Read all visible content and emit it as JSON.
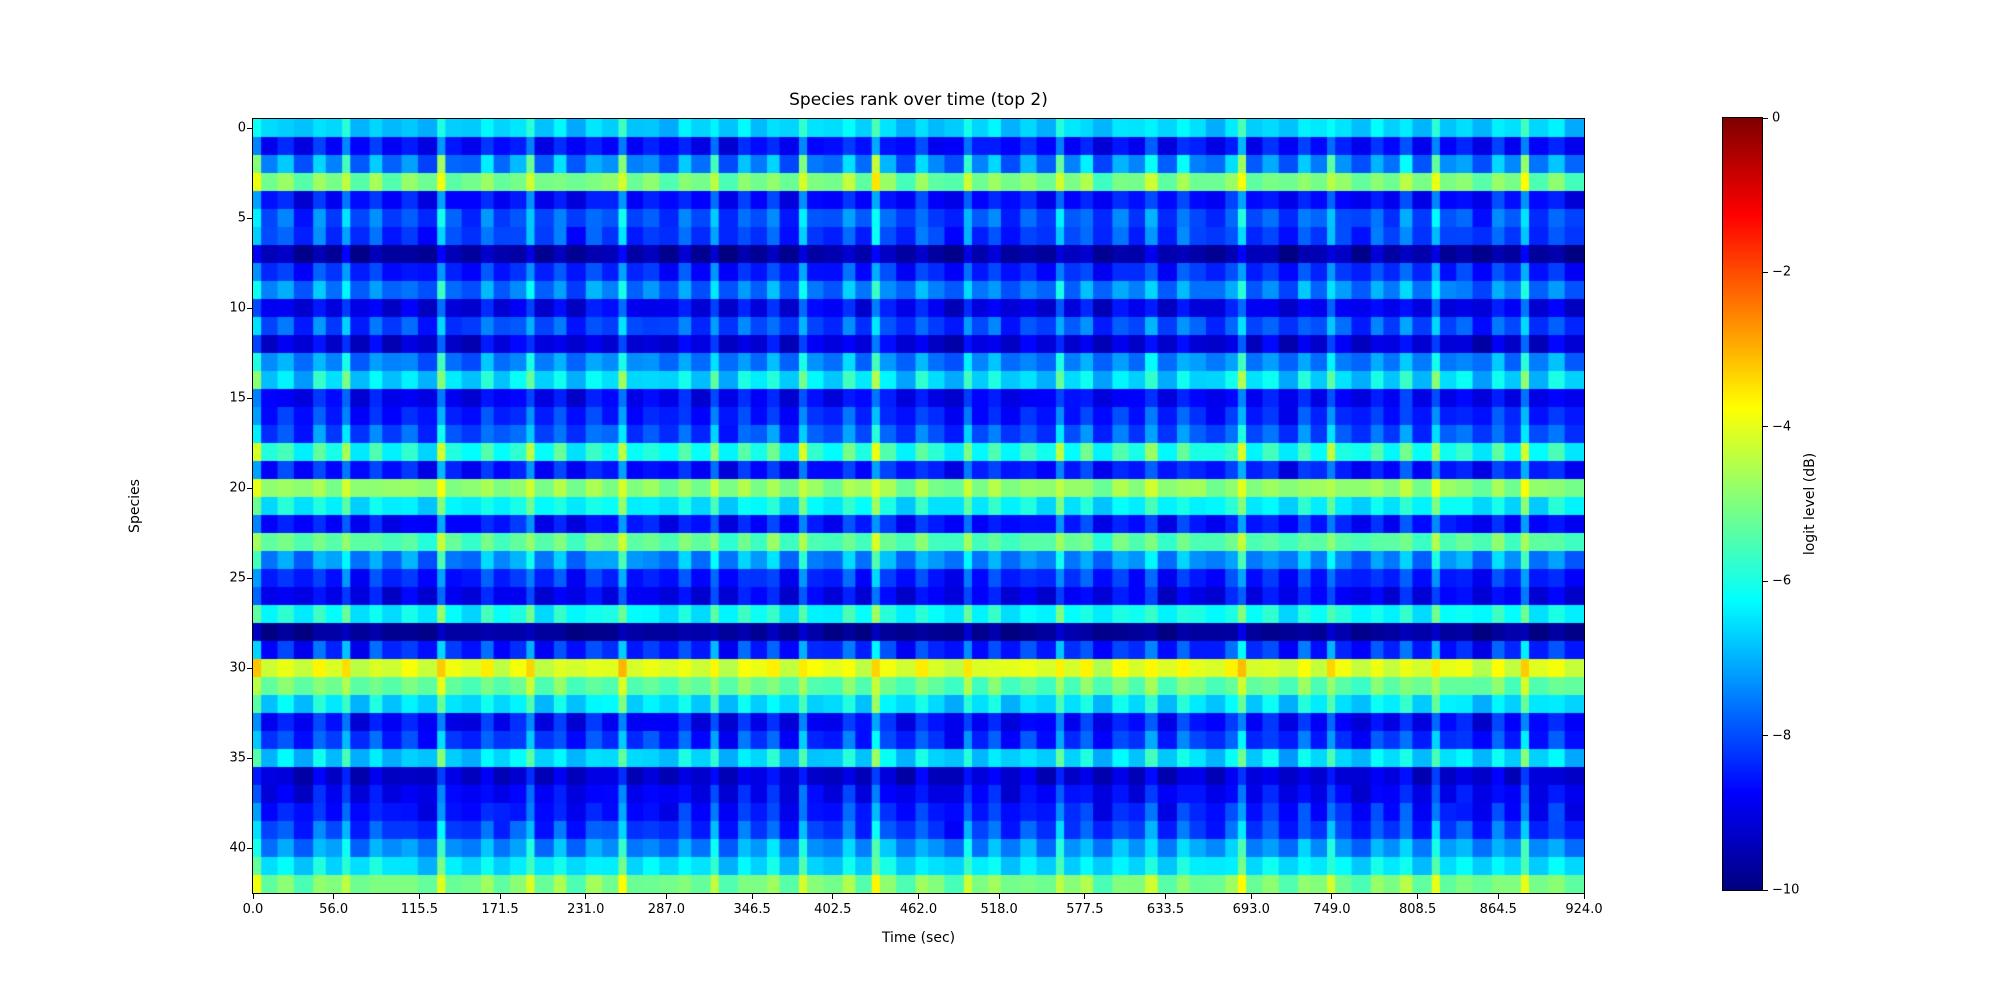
{
  "figure": {
    "background_color": "#ffffff",
    "text_color": "#000000"
  },
  "chart_data": {
    "type": "heatmap",
    "title": "Species rank over time (top 2)",
    "xlabel": "Time (sec)",
    "ylabel": "Species",
    "colorbar_label": "logit level (dB)",
    "colormap": "jet",
    "colormap_stops": [
      "#000080",
      "#0000ff",
      "#00ffff",
      "#80ff80",
      "#ffff00",
      "#ff0000",
      "#800000"
    ],
    "value_range_db": [
      -10,
      0
    ],
    "x_range_sec": [
      0,
      924
    ],
    "n_rows": 43,
    "n_cols": 88,
    "x_tick_labels": [
      "0.0",
      "56.0",
      "115.5",
      "171.5",
      "231.0",
      "287.0",
      "346.5",
      "402.5",
      "462.0",
      "518.0",
      "577.5",
      "633.5",
      "693.0",
      "749.0",
      "808.5",
      "864.5",
      "924.0"
    ],
    "x_tick_seconds": [
      0,
      56,
      115.5,
      171.5,
      231,
      287,
      346.5,
      402.5,
      462,
      518,
      577.5,
      633.5,
      693,
      749,
      808.5,
      864.5,
      924
    ],
    "y_tick_labels": [
      "0",
      "5",
      "10",
      "15",
      "20",
      "25",
      "30",
      "35",
      "40"
    ],
    "y_tick_rows": [
      0,
      5,
      10,
      15,
      20,
      25,
      30,
      35,
      40
    ],
    "colorbar_tick_labels": [
      "0",
      "−2",
      "−4",
      "−6",
      "−8",
      "−10"
    ],
    "colorbar_tick_values": [
      0,
      -2,
      -4,
      -6,
      -8,
      -10
    ],
    "row_base_db": [
      -6.6,
      -8.5,
      -7.2,
      -5.0,
      -8.5,
      -7.8,
      -8.0,
      -9.5,
      -8.3,
      -7.4,
      -8.8,
      -7.9,
      -9.0,
      -7.3,
      -6.4,
      -8.7,
      -8.3,
      -7.8,
      -5.8,
      -8.4,
      -4.8,
      -6.2,
      -8.5,
      -5.3,
      -7.2,
      -8.3,
      -8.8,
      -6.1,
      -9.7,
      -8.2,
      -4.0,
      -5.2,
      -6.4,
      -8.6,
      -8.1,
      -6.5,
      -9.1,
      -8.7,
      -8.4,
      -8.0,
      -7.2,
      -6.4,
      -5.0
    ],
    "row_mod_gain": [
      0.5,
      0.8,
      1.5,
      0.7,
      0.8,
      1.0,
      0.9,
      0.5,
      0.8,
      1.0,
      0.7,
      0.9,
      0.7,
      1.0,
      1.0,
      0.7,
      0.8,
      1.0,
      1.1,
      0.8,
      0.5,
      0.8,
      0.8,
      0.6,
      1.0,
      0.8,
      0.7,
      0.7,
      0.3,
      1.1,
      0.5,
      0.6,
      0.8,
      0.8,
      1.0,
      0.9,
      0.6,
      0.7,
      0.8,
      1.0,
      1.0,
      0.7,
      0.7
    ],
    "col_mod_db": [
      1.4,
      -0.3,
      0.2,
      -0.6,
      0.5,
      -0.2,
      1.1,
      -0.5,
      0.3,
      -0.4,
      0.0,
      -0.6,
      1.6,
      -0.2,
      -0.5,
      0.4,
      -0.3,
      0.1,
      1.2,
      -0.4,
      0.3,
      -0.6,
      0.2,
      -0.1,
      1.5,
      -0.3,
      0.0,
      -0.5,
      0.4,
      -0.4,
      1.0,
      -0.6,
      0.3,
      -0.2,
      0.5,
      -0.5,
      1.3,
      -0.1,
      -0.4,
      0.6,
      -0.3,
      1.8,
      0.2,
      -0.5,
      0.4,
      -0.2,
      -0.6,
      0.9,
      -0.3,
      0.3,
      -0.5,
      0.1,
      -0.4,
      1.2,
      -0.2,
      0.4,
      -0.6,
      0.2,
      -0.3,
      0.8,
      -0.5,
      0.5,
      -0.1,
      -0.4,
      0.3,
      1.7,
      -0.3,
      0.2,
      -0.6,
      0.4,
      -0.2,
      1.1,
      0.0,
      -0.5,
      0.3,
      -0.3,
      0.6,
      -0.4,
      1.3,
      -0.2,
      0.1,
      -0.6,
      0.4,
      -0.3,
      1.5,
      -0.4,
      0.2,
      -0.5
    ]
  }
}
